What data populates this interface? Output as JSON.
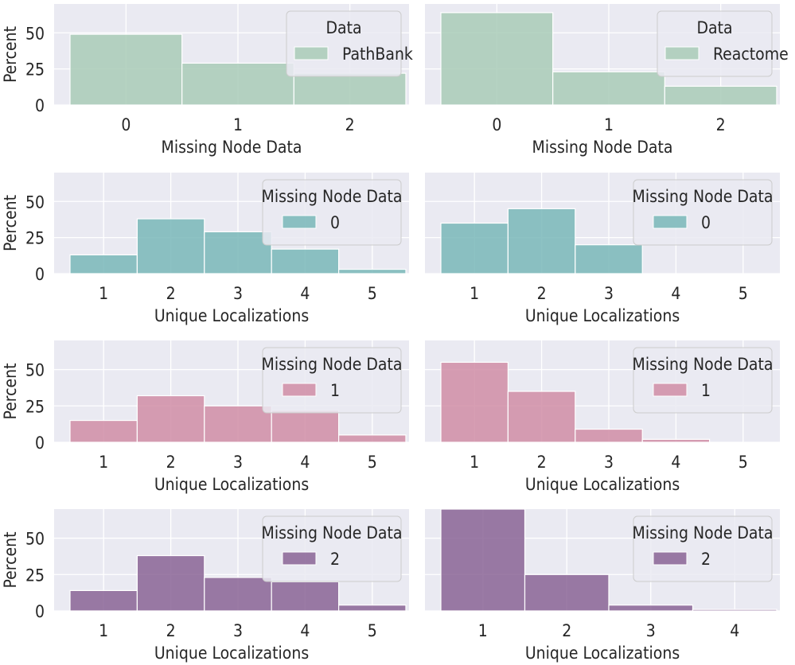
{
  "chart_data": [
    {
      "type": "bar",
      "categories": [
        "0",
        "1",
        "2"
      ],
      "series": [
        {
          "name": "PathBank",
          "values": [
            49,
            29,
            22
          ]
        }
      ],
      "xlabel": "Missing Node Data",
      "ylabel": "Percent",
      "ylim": [
        0,
        70
      ],
      "yticks": [
        0,
        25,
        50
      ],
      "legend": {
        "title": "Data",
        "entries": [
          "PathBank"
        ],
        "placement": "top-right"
      },
      "color": "#a9cbb7",
      "grid": true
    },
    {
      "type": "bar",
      "categories": [
        "0",
        "1",
        "2"
      ],
      "series": [
        {
          "name": "Reactome",
          "values": [
            64,
            23,
            13
          ]
        }
      ],
      "xlabel": "Missing Node Data",
      "ylabel": "",
      "ylim": [
        0,
        70
      ],
      "yticks": [
        0,
        25,
        50
      ],
      "legend": {
        "title": "Data",
        "entries": [
          "Reactome"
        ],
        "placement": "top-right"
      },
      "color": "#a9cbb7",
      "grid": true
    },
    {
      "type": "bar",
      "categories": [
        "1",
        "2",
        "3",
        "4",
        "5"
      ],
      "series": [
        {
          "name": "0",
          "values": [
            13,
            38,
            29,
            17,
            3
          ]
        }
      ],
      "xlabel": "Unique Localizations",
      "ylabel": "Percent",
      "ylim": [
        0,
        70
      ],
      "yticks": [
        0,
        25,
        50
      ],
      "legend": {
        "title": "Missing Node Data",
        "entries": [
          "0"
        ],
        "placement": "top-right"
      },
      "color": "#79b7b8",
      "grid": true
    },
    {
      "type": "bar",
      "categories": [
        "1",
        "2",
        "3",
        "4",
        "5"
      ],
      "series": [
        {
          "name": "0",
          "values": [
            35,
            45,
            20,
            0,
            0
          ]
        }
      ],
      "xlabel": "Unique Localizations",
      "ylabel": "",
      "ylim": [
        0,
        70
      ],
      "yticks": [
        0,
        25,
        50
      ],
      "legend": {
        "title": "Missing Node Data",
        "entries": [
          "0"
        ],
        "placement": "top-right"
      },
      "color": "#79b7b8",
      "grid": true
    },
    {
      "type": "bar",
      "categories": [
        "1",
        "2",
        "3",
        "4",
        "5"
      ],
      "series": [
        {
          "name": "1",
          "values": [
            15,
            32,
            25,
            22,
            5
          ]
        }
      ],
      "xlabel": "Unique Localizations",
      "ylabel": "Percent",
      "ylim": [
        0,
        70
      ],
      "yticks": [
        0,
        25,
        50
      ],
      "legend": {
        "title": "Missing Node Data",
        "entries": [
          "1"
        ],
        "placement": "top-right"
      },
      "color": "#d08da6",
      "grid": true
    },
    {
      "type": "bar",
      "categories": [
        "1",
        "2",
        "3",
        "4",
        "5"
      ],
      "series": [
        {
          "name": "1",
          "values": [
            55,
            35,
            9,
            2,
            0
          ]
        }
      ],
      "xlabel": "Unique Localizations",
      "ylabel": "",
      "ylim": [
        0,
        70
      ],
      "yticks": [
        0,
        25,
        50
      ],
      "legend": {
        "title": "Missing Node Data",
        "entries": [
          "1"
        ],
        "placement": "top-right"
      },
      "color": "#d08da6",
      "grid": true
    },
    {
      "type": "bar",
      "categories": [
        "1",
        "2",
        "3",
        "4",
        "5"
      ],
      "series": [
        {
          "name": "2",
          "values": [
            14,
            38,
            23,
            20,
            4
          ]
        }
      ],
      "xlabel": "Unique Localizations",
      "ylabel": "Percent",
      "ylim": [
        0,
        70
      ],
      "yticks": [
        0,
        25,
        50
      ],
      "legend": {
        "title": "Missing Node Data",
        "entries": [
          "2"
        ],
        "placement": "top-right"
      },
      "color": "#8a6495",
      "grid": true
    },
    {
      "type": "bar",
      "categories": [
        "1",
        "2",
        "3",
        "4"
      ],
      "series": [
        {
          "name": "2",
          "values": [
            70,
            25,
            4,
            1
          ]
        }
      ],
      "xlabel": "Unique Localizations",
      "ylabel": "",
      "ylim": [
        0,
        70
      ],
      "yticks": [
        0,
        25,
        50
      ],
      "legend": {
        "title": "Missing Node Data",
        "entries": [
          "2"
        ],
        "placement": "top-right"
      },
      "color": "#8a6495",
      "grid": true
    }
  ]
}
